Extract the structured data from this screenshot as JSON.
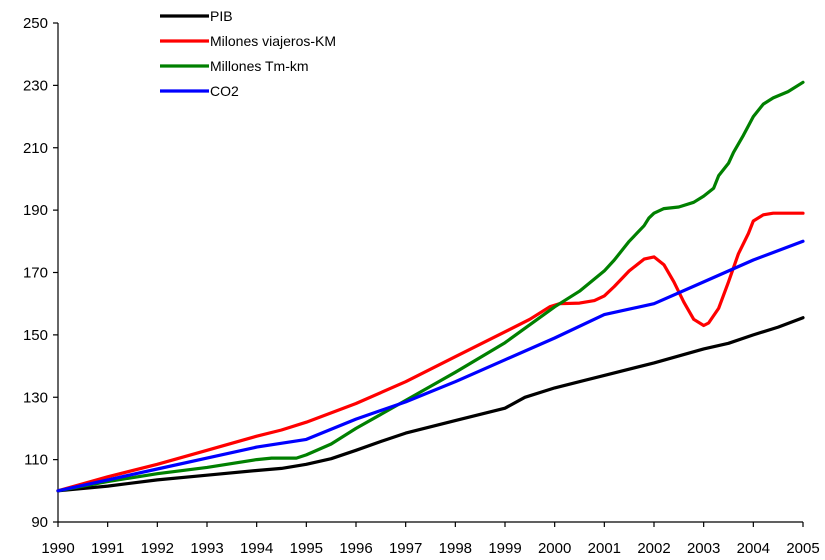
{
  "chart_data": {
    "type": "line",
    "title": "",
    "xlabel": "",
    "ylabel": "",
    "xlim": [
      1990,
      2005
    ],
    "ylim": [
      90,
      250
    ],
    "x_ticks": [
      "1990",
      "1991",
      "1992",
      "1993",
      "1994",
      "1995",
      "1996",
      "1997",
      "1998",
      "1999",
      "2000",
      "2001",
      "2002",
      "2003",
      "2004",
      "2005"
    ],
    "y_ticks": [
      "90",
      "110",
      "130",
      "150",
      "170",
      "190",
      "210",
      "230",
      "250"
    ],
    "grid": false,
    "legend_position": "top-left",
    "series": [
      {
        "name": "PIB",
        "color": "#000000",
        "points": [
          [
            1990,
            100
          ],
          [
            1991,
            101.5
          ],
          [
            1992,
            103.5
          ],
          [
            1993,
            105
          ],
          [
            1994,
            106.5
          ],
          [
            1994.5,
            107.2
          ],
          [
            1995,
            108.5
          ],
          [
            1995.5,
            110.3
          ],
          [
            1996,
            113
          ],
          [
            1996.5,
            115.8
          ],
          [
            1997,
            118.5
          ],
          [
            1998,
            122.5
          ],
          [
            1999,
            126.5
          ],
          [
            1999.4,
            130
          ],
          [
            2000,
            133
          ],
          [
            2001,
            137
          ],
          [
            2002,
            141
          ],
          [
            2003,
            145.5
          ],
          [
            2003.5,
            147.3
          ],
          [
            2004,
            150
          ],
          [
            2004.5,
            152.5
          ],
          [
            2005,
            155.5
          ]
        ]
      },
      {
        "name": "Milones viajeros-KM",
        "color": "#ff0000",
        "points": [
          [
            1990,
            100
          ],
          [
            1991,
            104.5
          ],
          [
            1992,
            108.5
          ],
          [
            1993,
            113
          ],
          [
            1994,
            117.5
          ],
          [
            1994.5,
            119.5
          ],
          [
            1995,
            122
          ],
          [
            1996,
            128
          ],
          [
            1997,
            135
          ],
          [
            1998,
            143
          ],
          [
            1999,
            151
          ],
          [
            1999.5,
            155
          ],
          [
            1999.9,
            159
          ],
          [
            2000.1,
            160
          ],
          [
            2000.5,
            160.2
          ],
          [
            2000.8,
            161
          ],
          [
            2001,
            162.5
          ],
          [
            2001.2,
            165.5
          ],
          [
            2001.5,
            170.5
          ],
          [
            2001.8,
            174.3
          ],
          [
            2002,
            175
          ],
          [
            2002.2,
            172.5
          ],
          [
            2002.4,
            167
          ],
          [
            2002.6,
            160.5
          ],
          [
            2002.8,
            155
          ],
          [
            2003,
            153
          ],
          [
            2003.1,
            153.8
          ],
          [
            2003.3,
            158.5
          ],
          [
            2003.5,
            167
          ],
          [
            2003.7,
            176
          ],
          [
            2003.9,
            182.5
          ],
          [
            2004,
            186.5
          ],
          [
            2004.2,
            188.5
          ],
          [
            2004.4,
            189
          ],
          [
            2005,
            189
          ]
        ]
      },
      {
        "name": "Millones Tm-km",
        "color": "#008000",
        "points": [
          [
            1990,
            100
          ],
          [
            1991,
            103
          ],
          [
            1992,
            105.5
          ],
          [
            1993,
            107.5
          ],
          [
            1994,
            110
          ],
          [
            1994.3,
            110.5
          ],
          [
            1994.8,
            110.5
          ],
          [
            1995,
            111.5
          ],
          [
            1995.5,
            115
          ],
          [
            1996,
            120
          ],
          [
            1997,
            129
          ],
          [
            1998,
            138
          ],
          [
            1999,
            147.5
          ],
          [
            2000,
            159
          ],
          [
            2000.5,
            164
          ],
          [
            2001,
            170.5
          ],
          [
            2001.2,
            174
          ],
          [
            2001.5,
            180
          ],
          [
            2001.8,
            185
          ],
          [
            2001.9,
            187.5
          ],
          [
            2002,
            189
          ],
          [
            2002.2,
            190.5
          ],
          [
            2002.5,
            191
          ],
          [
            2002.8,
            192.5
          ],
          [
            2003,
            194.5
          ],
          [
            2003.2,
            197
          ],
          [
            2003.3,
            201
          ],
          [
            2003.5,
            205
          ],
          [
            2003.6,
            208.5
          ],
          [
            2003.8,
            214
          ],
          [
            2004,
            220
          ],
          [
            2004.2,
            224
          ],
          [
            2004.4,
            226
          ],
          [
            2004.7,
            228
          ],
          [
            2005,
            231
          ]
        ]
      },
      {
        "name": "CO2",
        "color": "#0000ff",
        "points": [
          [
            1990,
            100
          ],
          [
            1991,
            103.5
          ],
          [
            1992,
            107
          ],
          [
            1993,
            110.5
          ],
          [
            1994,
            114
          ],
          [
            1995,
            116.5
          ],
          [
            1996,
            123
          ],
          [
            1997,
            128.5
          ],
          [
            1998,
            135
          ],
          [
            1999,
            142
          ],
          [
            2000,
            149
          ],
          [
            2001,
            156.5
          ],
          [
            2002,
            160
          ],
          [
            2003,
            167
          ],
          [
            2004,
            174
          ],
          [
            2005,
            180
          ]
        ]
      }
    ]
  }
}
